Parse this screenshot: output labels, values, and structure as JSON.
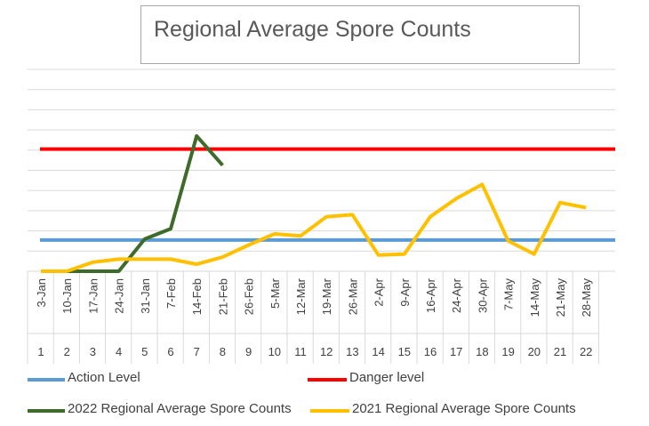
{
  "chart_data": {
    "type": "line",
    "title": "Regional Average Spore Counts",
    "ylim": [
      0,
      10
    ],
    "grid": true,
    "week_dates": [
      "3-Jan",
      "10-Jan",
      "17-Jan",
      "24-Jan",
      "31-Jan",
      "7-Feb",
      "14-Feb",
      "21-Feb",
      "26-Feb",
      "5-Mar",
      "12-Mar",
      "19-Mar",
      "26-Mar",
      "2-Apr",
      "9-Apr",
      "16-Apr",
      "24-Apr",
      "30-Apr",
      "7-May",
      "14-May",
      "21-May",
      "28-May"
    ],
    "week_numbers": [
      "1",
      "2",
      "3",
      "4",
      "5",
      "6",
      "7",
      "8",
      "9",
      "10",
      "11",
      "12",
      "13",
      "14",
      "15",
      "16",
      "17",
      "18",
      "19",
      "20",
      "21",
      "22"
    ],
    "series": [
      {
        "name": "Action Level",
        "color": "#5b9bd5",
        "values": [
          1.55,
          1.55,
          1.55,
          1.55,
          1.55,
          1.55,
          1.55,
          1.55,
          1.55,
          1.55,
          1.55,
          1.55,
          1.55,
          1.55,
          1.55,
          1.55,
          1.55,
          1.55,
          1.55,
          1.55,
          1.55,
          1.55
        ]
      },
      {
        "name": "Danger level",
        "color": "#ff0000",
        "values": [
          6.05,
          6.05,
          6.05,
          6.05,
          6.05,
          6.05,
          6.05,
          6.05,
          6.05,
          6.05,
          6.05,
          6.05,
          6.05,
          6.05,
          6.05,
          6.05,
          6.05,
          6.05,
          6.05,
          6.05,
          6.05,
          6.05
        ]
      },
      {
        "name": "2022 Regional Average Spore Counts",
        "color": "#3e6b29",
        "values": [
          0,
          0,
          0,
          0,
          1.6,
          2.1,
          6.7,
          5.25
        ]
      },
      {
        "name": "2021 Regional Average Spore Counts",
        "color": "#ffc000",
        "values": [
          0,
          0,
          0.45,
          0.6,
          0.6,
          0.6,
          0.35,
          0.7,
          1.3,
          1.85,
          1.75,
          2.7,
          2.8,
          0.8,
          0.85,
          2.7,
          3.6,
          4.3,
          1.5,
          0.85,
          3.4,
          3.15
        ]
      }
    ],
    "legend_placement": "bottom"
  }
}
